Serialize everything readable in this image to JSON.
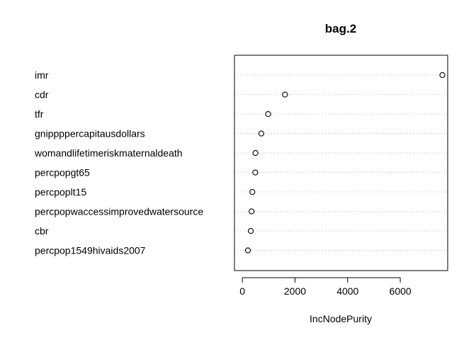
{
  "chart_data": {
    "type": "dotchart",
    "title": "bag.2",
    "xlabel": "IncNodePurity",
    "ylabel": "",
    "xlim": [
      -300,
      7800
    ],
    "xticks": [
      0,
      2000,
      4000,
      6000
    ],
    "grid": "dotted horizontal",
    "categories": [
      "imr",
      "cdr",
      "tfr",
      "gnippppercapitausdollars",
      "womandlifetimeriskmaternaldeath",
      "percpopgt65",
      "percpoplt15",
      "percpopwaccessimprovedwatersource",
      "cbr",
      "percpop1549hivaids2007"
    ],
    "values": [
      7600,
      1620,
      980,
      720,
      500,
      490,
      380,
      350,
      320,
      210
    ]
  }
}
